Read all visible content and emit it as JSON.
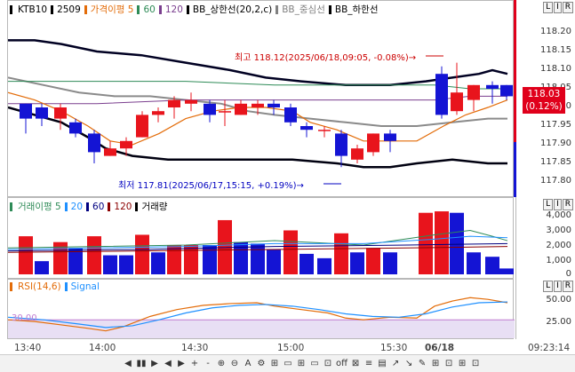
{
  "price_pane": {
    "legend": [
      {
        "label": "KTB10",
        "color": "#000000"
      },
      {
        "label": "2509",
        "color": "#000000"
      },
      {
        "label": "가격이평 5",
        "color": "#e36c09"
      },
      {
        "label": "60",
        "color": "#2e8b57"
      },
      {
        "label": "120",
        "color": "#7a3e8e"
      },
      {
        "label": "BB_상한선(20,2,c)",
        "color": "#000000"
      },
      {
        "label": "BB_중심선",
        "color": "#808080"
      },
      {
        "label": "BB_하한선",
        "color": "#000000"
      }
    ],
    "y_ticks": [
      "118.20",
      "118.15",
      "118.10",
      "118.05",
      "118.00",
      "117.95",
      "117.90",
      "117.85",
      "117.80"
    ],
    "current_price": "118.03",
    "current_change": "(0.12%)",
    "high_annotation": "최고 118.12(2025/06/18,09:05, -0.08%)→",
    "low_annotation": "최저 117.81(2025/06/17,15:15, +0.19%)→"
  },
  "volume_pane": {
    "legend": [
      {
        "label": "거래이평 5",
        "color": "#2e8b57"
      },
      {
        "label": "20",
        "color": "#1e90ff"
      },
      {
        "label": "60",
        "color": "#000080"
      },
      {
        "label": "120",
        "color": "#8b0000"
      },
      {
        "label": "거래량",
        "color": "#000000"
      }
    ],
    "y_ticks": [
      "4,000",
      "3,000",
      "2,000",
      "1,000",
      "0"
    ]
  },
  "rsi_pane": {
    "legend": [
      {
        "label": "RSI(14,6)",
        "color": "#e36c09"
      },
      {
        "label": "Signal",
        "color": "#1e90ff"
      }
    ],
    "level_label": "30.00",
    "y_ticks": [
      "50.00",
      "25.00"
    ]
  },
  "x_axis": {
    "ticks": [
      "13:40",
      "14:00",
      "14:30",
      "15:00",
      "15:30",
      "06/18"
    ],
    "time": "09:23:14"
  },
  "panel_buttons": [
    "L",
    "I",
    "R"
  ],
  "toolbar": {
    "buttons": [
      "◀",
      "▮▮",
      "▶",
      "◀",
      "▶",
      "+",
      "-",
      "⊕",
      "⊖",
      "A",
      "⚙",
      "⊞",
      "▭",
      "⊞",
      "▭",
      "⊡",
      "off",
      "⊠",
      "≡",
      "▤",
      "↗",
      "↘",
      "✎",
      "⊞",
      "⊡",
      "⊞",
      "⊡"
    ]
  },
  "colors": {
    "up": "#e8141c",
    "down": "#1414d4",
    "accent": "#e0001b"
  }
}
